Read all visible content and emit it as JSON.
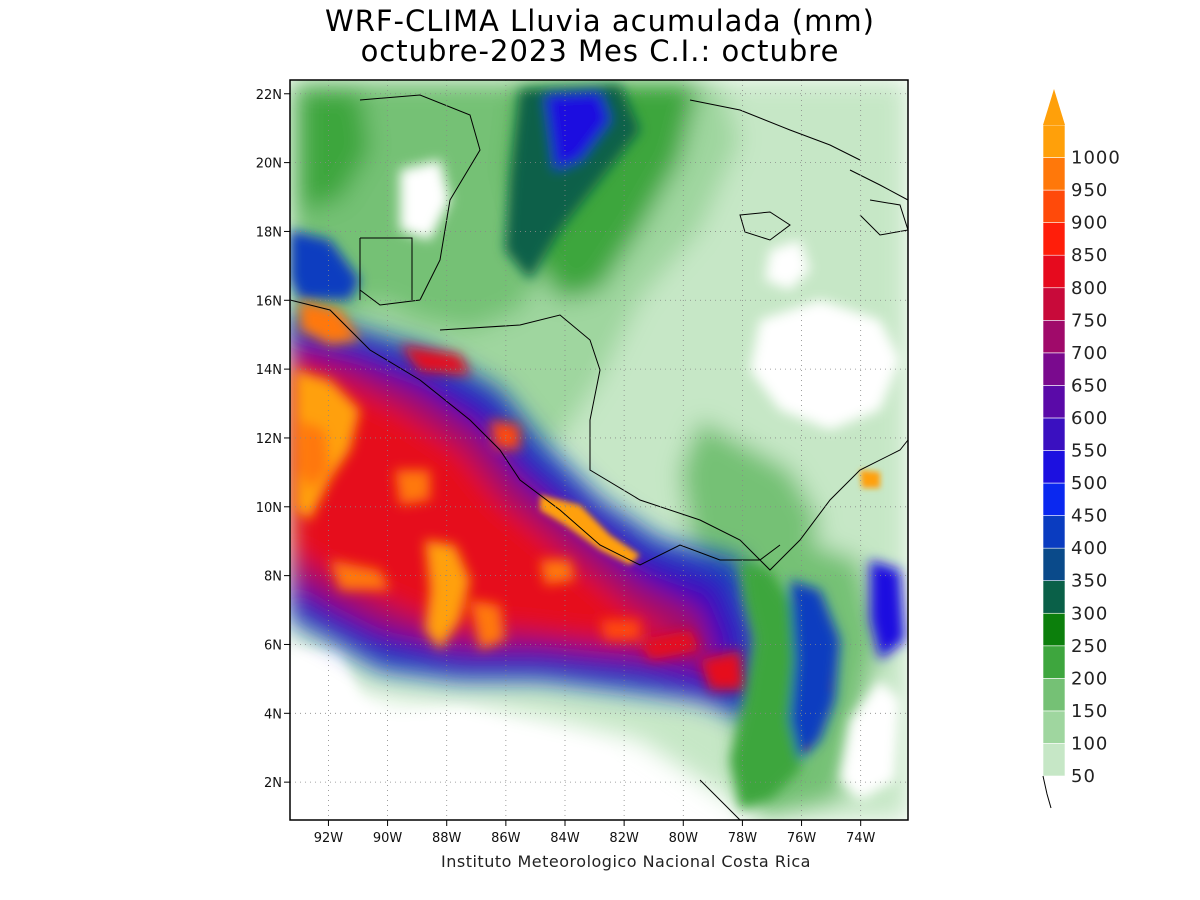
{
  "title": {
    "line1": "WRF-CLIMA Lluvia acumulada (mm)",
    "line2": "octubre-2023 Mes C.I.: octubre"
  },
  "footer": "Instituto Meteorologico Nacional Costa Rica",
  "map": {
    "lon_range": [
      -93.3,
      -72.4
    ],
    "lat_range": [
      0.9,
      22.4
    ],
    "grid": "dotted",
    "x_ticks": [
      "92W",
      "90W",
      "88W",
      "86W",
      "84W",
      "82W",
      "80W",
      "78W",
      "76W",
      "74W"
    ],
    "x_tick_values": [
      -92,
      -90,
      -88,
      -86,
      -84,
      -82,
      -80,
      -78,
      -76,
      -74
    ],
    "y_ticks": [
      "2N",
      "4N",
      "6N",
      "8N",
      "10N",
      "12N",
      "14N",
      "16N",
      "18N",
      "20N",
      "22N"
    ],
    "y_tick_values": [
      2,
      4,
      6,
      8,
      10,
      12,
      14,
      16,
      18,
      20,
      22
    ]
  },
  "colorbar": {
    "labels": [
      "50",
      "100",
      "150",
      "200",
      "250",
      "300",
      "350",
      "400",
      "450",
      "500",
      "550",
      "600",
      "650",
      "700",
      "750",
      "800",
      "850",
      "900",
      "950",
      "1000"
    ],
    "colors": [
      "#c6e7c6",
      "#9fd69f",
      "#75c175",
      "#3ea63e",
      "#0c7f0c",
      "#0a6048",
      "#0a4a8a",
      "#0a3cc0",
      "#0a28f0",
      "#1c10e0",
      "#3a10c0",
      "#5a0aa8",
      "#7a0a8e",
      "#a00a6a",
      "#c80a3a",
      "#e60a1e",
      "#ff1e0a",
      "#ff4a0a",
      "#ff780a",
      "#ffa00a"
    ],
    "over_color": "#ffa00a"
  }
}
